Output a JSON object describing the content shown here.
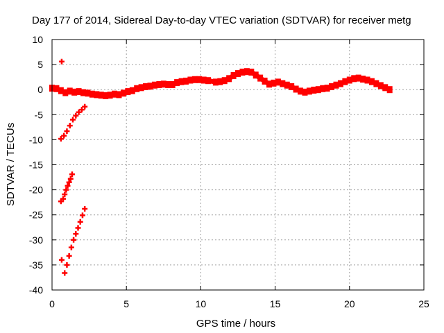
{
  "chart_data": {
    "type": "scatter",
    "title": "Day 177 of 2014, Sidereal Day-to-day VTEC variation (SDTVAR) for receiver metg",
    "xlabel": "GPS time / hours",
    "ylabel": "SDTVAR / TECUs",
    "xlim": [
      0,
      25
    ],
    "ylim": [
      -40,
      10
    ],
    "xticks": [
      "0",
      "5",
      "10",
      "15",
      "20",
      "25"
    ],
    "yticks": [
      "10",
      "5",
      "0",
      "-5",
      "-10",
      "-15",
      "-20",
      "-25",
      "-30",
      "-35",
      "-40"
    ],
    "grid": true,
    "legend": "none",
    "marker": "+",
    "series": [
      {
        "name": "main-trace",
        "color": "#ff0000",
        "x": [
          0.0,
          0.3,
          0.6,
          0.9,
          1.2,
          1.5,
          1.8,
          2.1,
          2.4,
          2.7,
          3.0,
          3.3,
          3.6,
          3.9,
          4.2,
          4.5,
          4.8,
          5.1,
          5.4,
          5.7,
          6.0,
          6.3,
          6.6,
          6.9,
          7.2,
          7.5,
          7.8,
          8.1,
          8.4,
          8.7,
          9.0,
          9.3,
          9.6,
          9.9,
          10.2,
          10.5,
          11.0,
          11.3,
          11.6,
          11.9,
          12.2,
          12.5,
          12.8,
          13.1,
          13.4,
          13.7,
          14.0,
          14.3,
          14.6,
          14.9,
          15.2,
          15.5,
          15.8,
          16.1,
          16.4,
          16.7,
          17.0,
          17.3,
          17.6,
          17.9,
          18.2,
          18.5,
          18.8,
          19.1,
          19.4,
          19.7,
          20.0,
          20.3,
          20.6,
          20.9,
          21.2,
          21.5,
          21.8,
          22.1,
          22.4,
          22.7
        ],
        "y": [
          0.3,
          0.2,
          -0.2,
          -0.6,
          -0.3,
          -0.5,
          -0.4,
          -0.6,
          -0.7,
          -0.9,
          -1.0,
          -1.1,
          -1.2,
          -1.1,
          -0.9,
          -1.0,
          -0.7,
          -0.4,
          -0.2,
          0.2,
          0.4,
          0.6,
          0.7,
          0.9,
          1.0,
          1.1,
          1.0,
          1.0,
          1.4,
          1.6,
          1.7,
          1.9,
          2.0,
          2.0,
          1.9,
          1.8,
          1.5,
          1.6,
          1.8,
          2.2,
          2.8,
          3.2,
          3.5,
          3.6,
          3.5,
          2.9,
          2.3,
          1.7,
          1.1,
          1.3,
          1.5,
          1.2,
          0.9,
          0.6,
          0.1,
          -0.3,
          -0.5,
          -0.3,
          -0.1,
          0.0,
          0.2,
          0.3,
          0.6,
          0.9,
          1.2,
          1.6,
          1.9,
          2.2,
          2.3,
          2.1,
          1.9,
          1.6,
          1.2,
          0.8,
          0.4,
          0.0
        ]
      },
      {
        "name": "descending-arc-1",
        "color": "#ff0000",
        "x": [
          0.6,
          0.8,
          1.0,
          1.2,
          1.4,
          1.6,
          1.8,
          2.0,
          2.2
        ],
        "y": [
          -9.8,
          -9.2,
          -8.3,
          -7.2,
          -6.0,
          -5.2,
          -4.5,
          -4.0,
          -3.4
        ]
      },
      {
        "name": "descending-arc-2",
        "color": "#ff0000",
        "x": [
          0.75,
          0.85,
          0.95,
          1.05,
          1.15,
          1.25,
          1.35
        ],
        "y": [
          -21.8,
          -20.9,
          -20.0,
          -19.2,
          -18.5,
          -17.8,
          -16.9
        ]
      },
      {
        "name": "descending-arc-3",
        "color": "#ff0000",
        "x": [
          0.85,
          1.0,
          1.15,
          1.3,
          1.45,
          1.6,
          1.75,
          1.9,
          2.05,
          2.2
        ],
        "y": [
          -36.6,
          -35.0,
          -33.2,
          -31.5,
          -30.0,
          -28.8,
          -27.6,
          -26.4,
          -25.1,
          -23.8
        ]
      },
      {
        "name": "outliers",
        "color": "#ff0000",
        "x": [
          0.65,
          0.6,
          0.65
        ],
        "y": [
          5.6,
          -22.3,
          -34.0
        ]
      }
    ]
  }
}
